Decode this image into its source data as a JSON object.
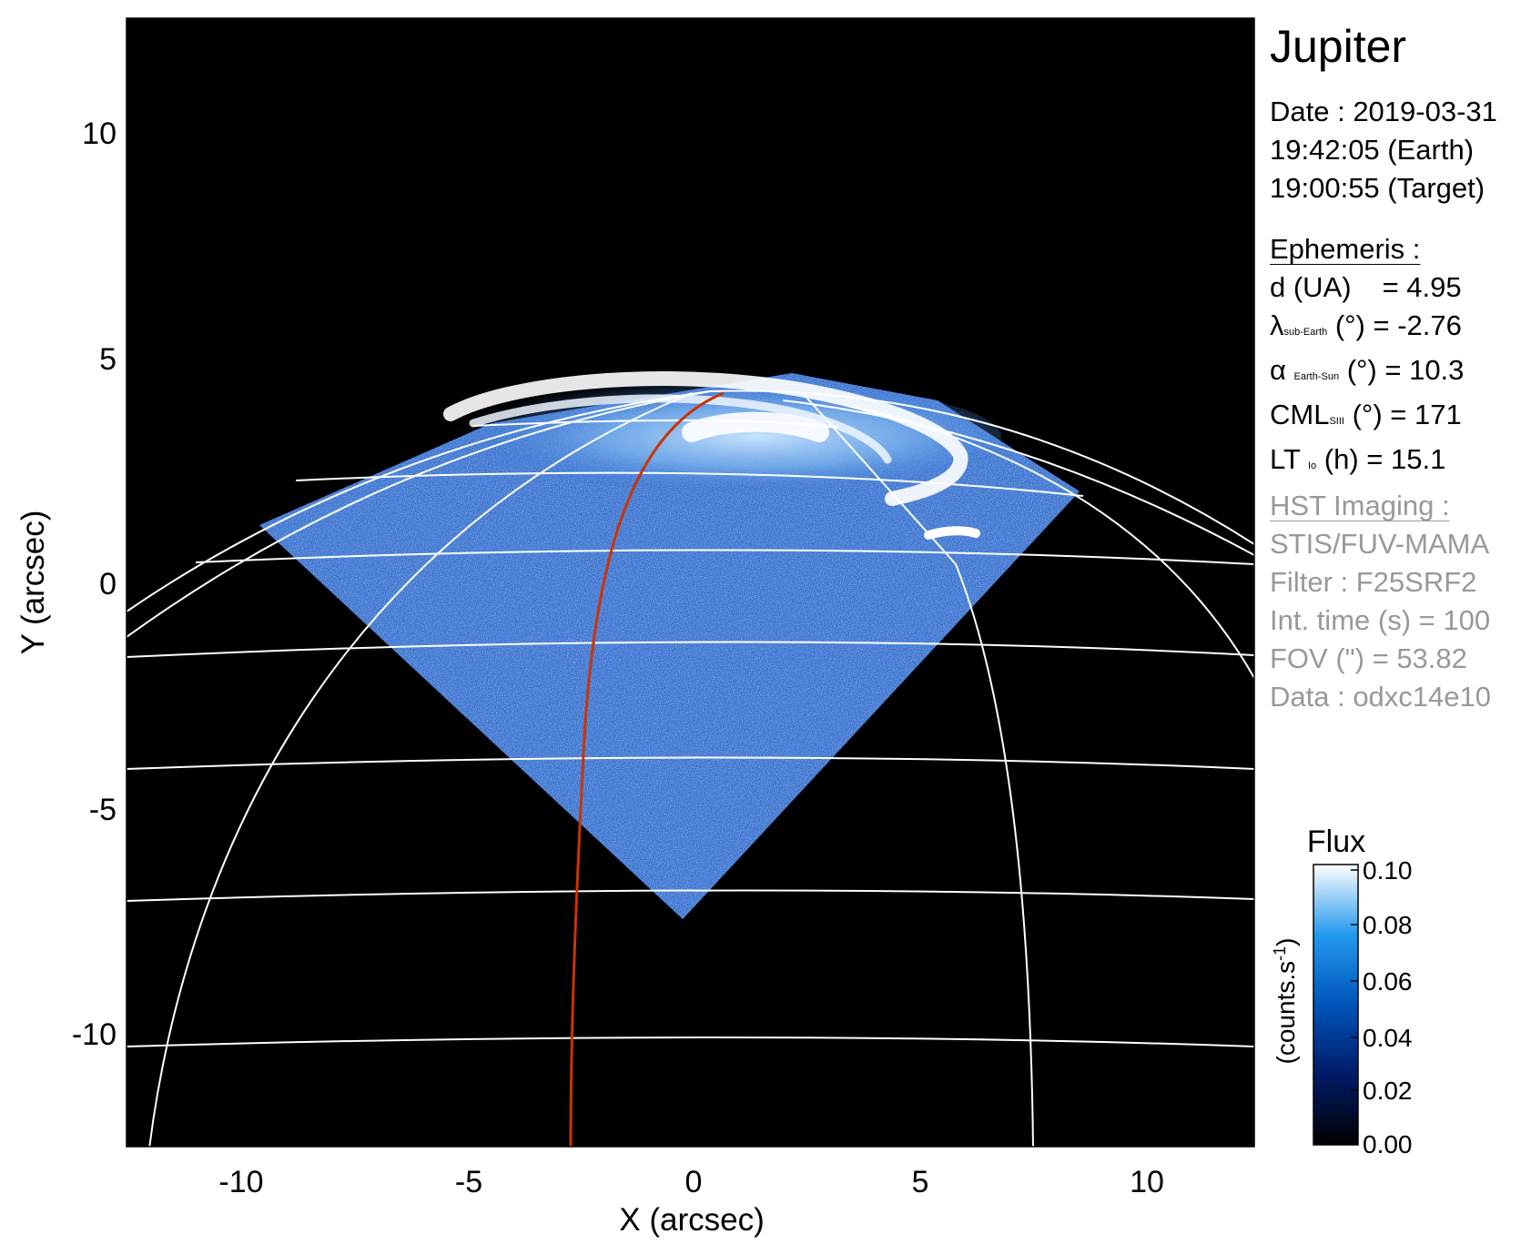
{
  "title": "Jupiter",
  "date": {
    "line1": "Date : 2019-03-31",
    "line2": "19:42:05 (Earth)",
    "line3": "19:00:55 (Target)"
  },
  "ephemeris": {
    "header": "Ephemeris :",
    "d_label": "d (UA)",
    "d_value": "= 4.95",
    "lambda_symbol": "λ",
    "lambda_sub": "sub-Earth",
    "lambda_rest": "(°) = -2.76",
    "alpha_symbol": "α",
    "alpha_sub": "Earth-Sun",
    "alpha_rest": "(°) = 10.3",
    "cml_symbol": "CML",
    "cml_sub": "SIII",
    "cml_rest": "(°) = 171",
    "lt_symbol": "LT",
    "lt_sub": "Io",
    "lt_rest": "(h) = 15.1"
  },
  "hst": {
    "header": "HST Imaging :",
    "instrument": "STIS/FUV-MAMA",
    "filter": "Filter : F25SRF2",
    "int_time": "Int. time (s) = 100",
    "fov": "FOV (\") = 53.82",
    "data": "Data : odxc14e10"
  },
  "axes": {
    "xlabel": "X (arcsec)",
    "ylabel": "Y (arcsec)",
    "xticks": [
      "-10",
      "-5",
      "0",
      "5",
      "10"
    ],
    "yticks": [
      "10",
      "5",
      "0",
      "-5",
      "-10"
    ]
  },
  "colorbar": {
    "title": "Flux",
    "unit": "(counts.s",
    "unit_sup": "-1",
    "unit_close": ")",
    "ticks": [
      "0.10",
      "0.08",
      "0.06",
      "0.04",
      "0.02",
      "0.00"
    ]
  },
  "colors": {
    "background": "#000000",
    "grid": "#ffffff",
    "central_meridian": "#cc3300",
    "flux_low": "#000000",
    "flux_mid": "#0077dd",
    "flux_high": "#ffffff"
  }
}
